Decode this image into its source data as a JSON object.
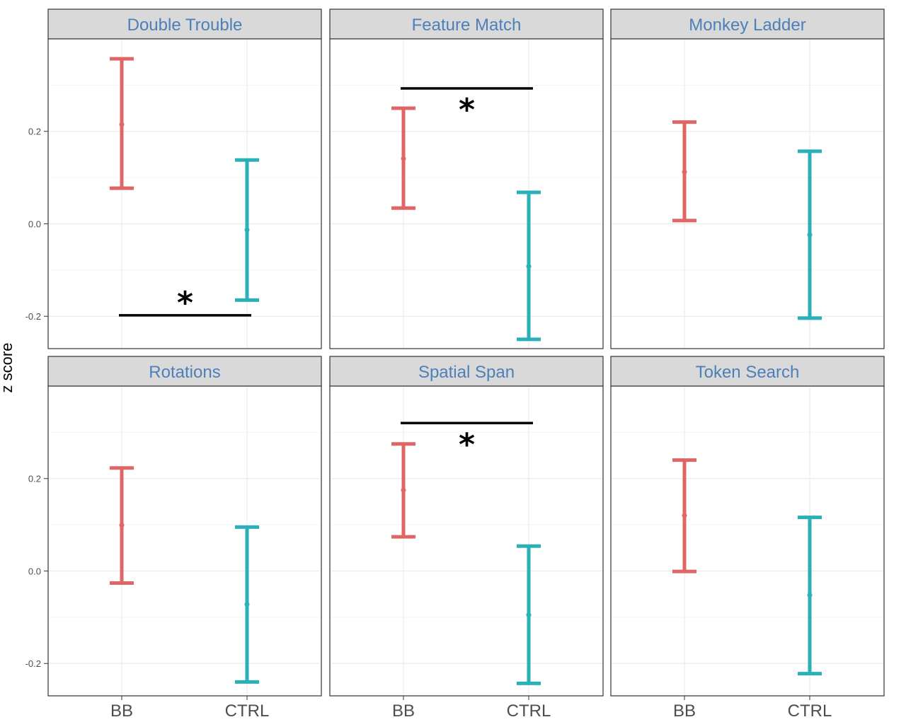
{
  "chart_data": {
    "type": "errorbar",
    "ylabel": "z score",
    "ylim": [
      -0.27,
      0.4
    ],
    "yticks": [
      -0.2,
      0.0,
      0.2
    ],
    "ytick_labels": [
      "-0.2",
      "0.0",
      "0.2"
    ],
    "categories": [
      "BB",
      "CTRL"
    ],
    "colors": {
      "BB": "#e06666",
      "CTRL": "#2ab0b8"
    },
    "grid": true,
    "panels": [
      {
        "title": "Double Trouble",
        "bars": [
          {
            "group": "BB",
            "mean": 0.215,
            "low": 0.077,
            "high": 0.357
          },
          {
            "group": "CTRL",
            "mean": -0.013,
            "low": -0.165,
            "high": 0.138
          }
        ],
        "significance": {
          "label": "*",
          "y": -0.198,
          "position": "below"
        }
      },
      {
        "title": "Feature Match",
        "bars": [
          {
            "group": "BB",
            "mean": 0.141,
            "low": 0.034,
            "high": 0.25
          },
          {
            "group": "CTRL",
            "mean": -0.092,
            "low": -0.25,
            "high": 0.068
          }
        ],
        "significance": {
          "label": "*",
          "y": 0.293,
          "position": "above"
        }
      },
      {
        "title": "Monkey Ladder",
        "bars": [
          {
            "group": "BB",
            "mean": 0.112,
            "low": 0.007,
            "high": 0.22
          },
          {
            "group": "CTRL",
            "mean": -0.024,
            "low": -0.204,
            "high": 0.157
          }
        ]
      },
      {
        "title": "Rotations",
        "bars": [
          {
            "group": "BB",
            "mean": 0.099,
            "low": -0.026,
            "high": 0.223
          },
          {
            "group": "CTRL",
            "mean": -0.072,
            "low": -0.24,
            "high": 0.095
          }
        ]
      },
      {
        "title": "Spatial Span",
        "bars": [
          {
            "group": "BB",
            "mean": 0.175,
            "low": 0.074,
            "high": 0.275
          },
          {
            "group": "CTRL",
            "mean": -0.095,
            "low": -0.243,
            "high": 0.054
          }
        ],
        "significance": {
          "label": "*",
          "y": 0.32,
          "position": "above"
        }
      },
      {
        "title": "Token Search",
        "bars": [
          {
            "group": "BB",
            "mean": 0.12,
            "low": -0.001,
            "high": 0.24
          },
          {
            "group": "CTRL",
            "mean": -0.052,
            "low": -0.222,
            "high": 0.116
          }
        ]
      }
    ]
  }
}
